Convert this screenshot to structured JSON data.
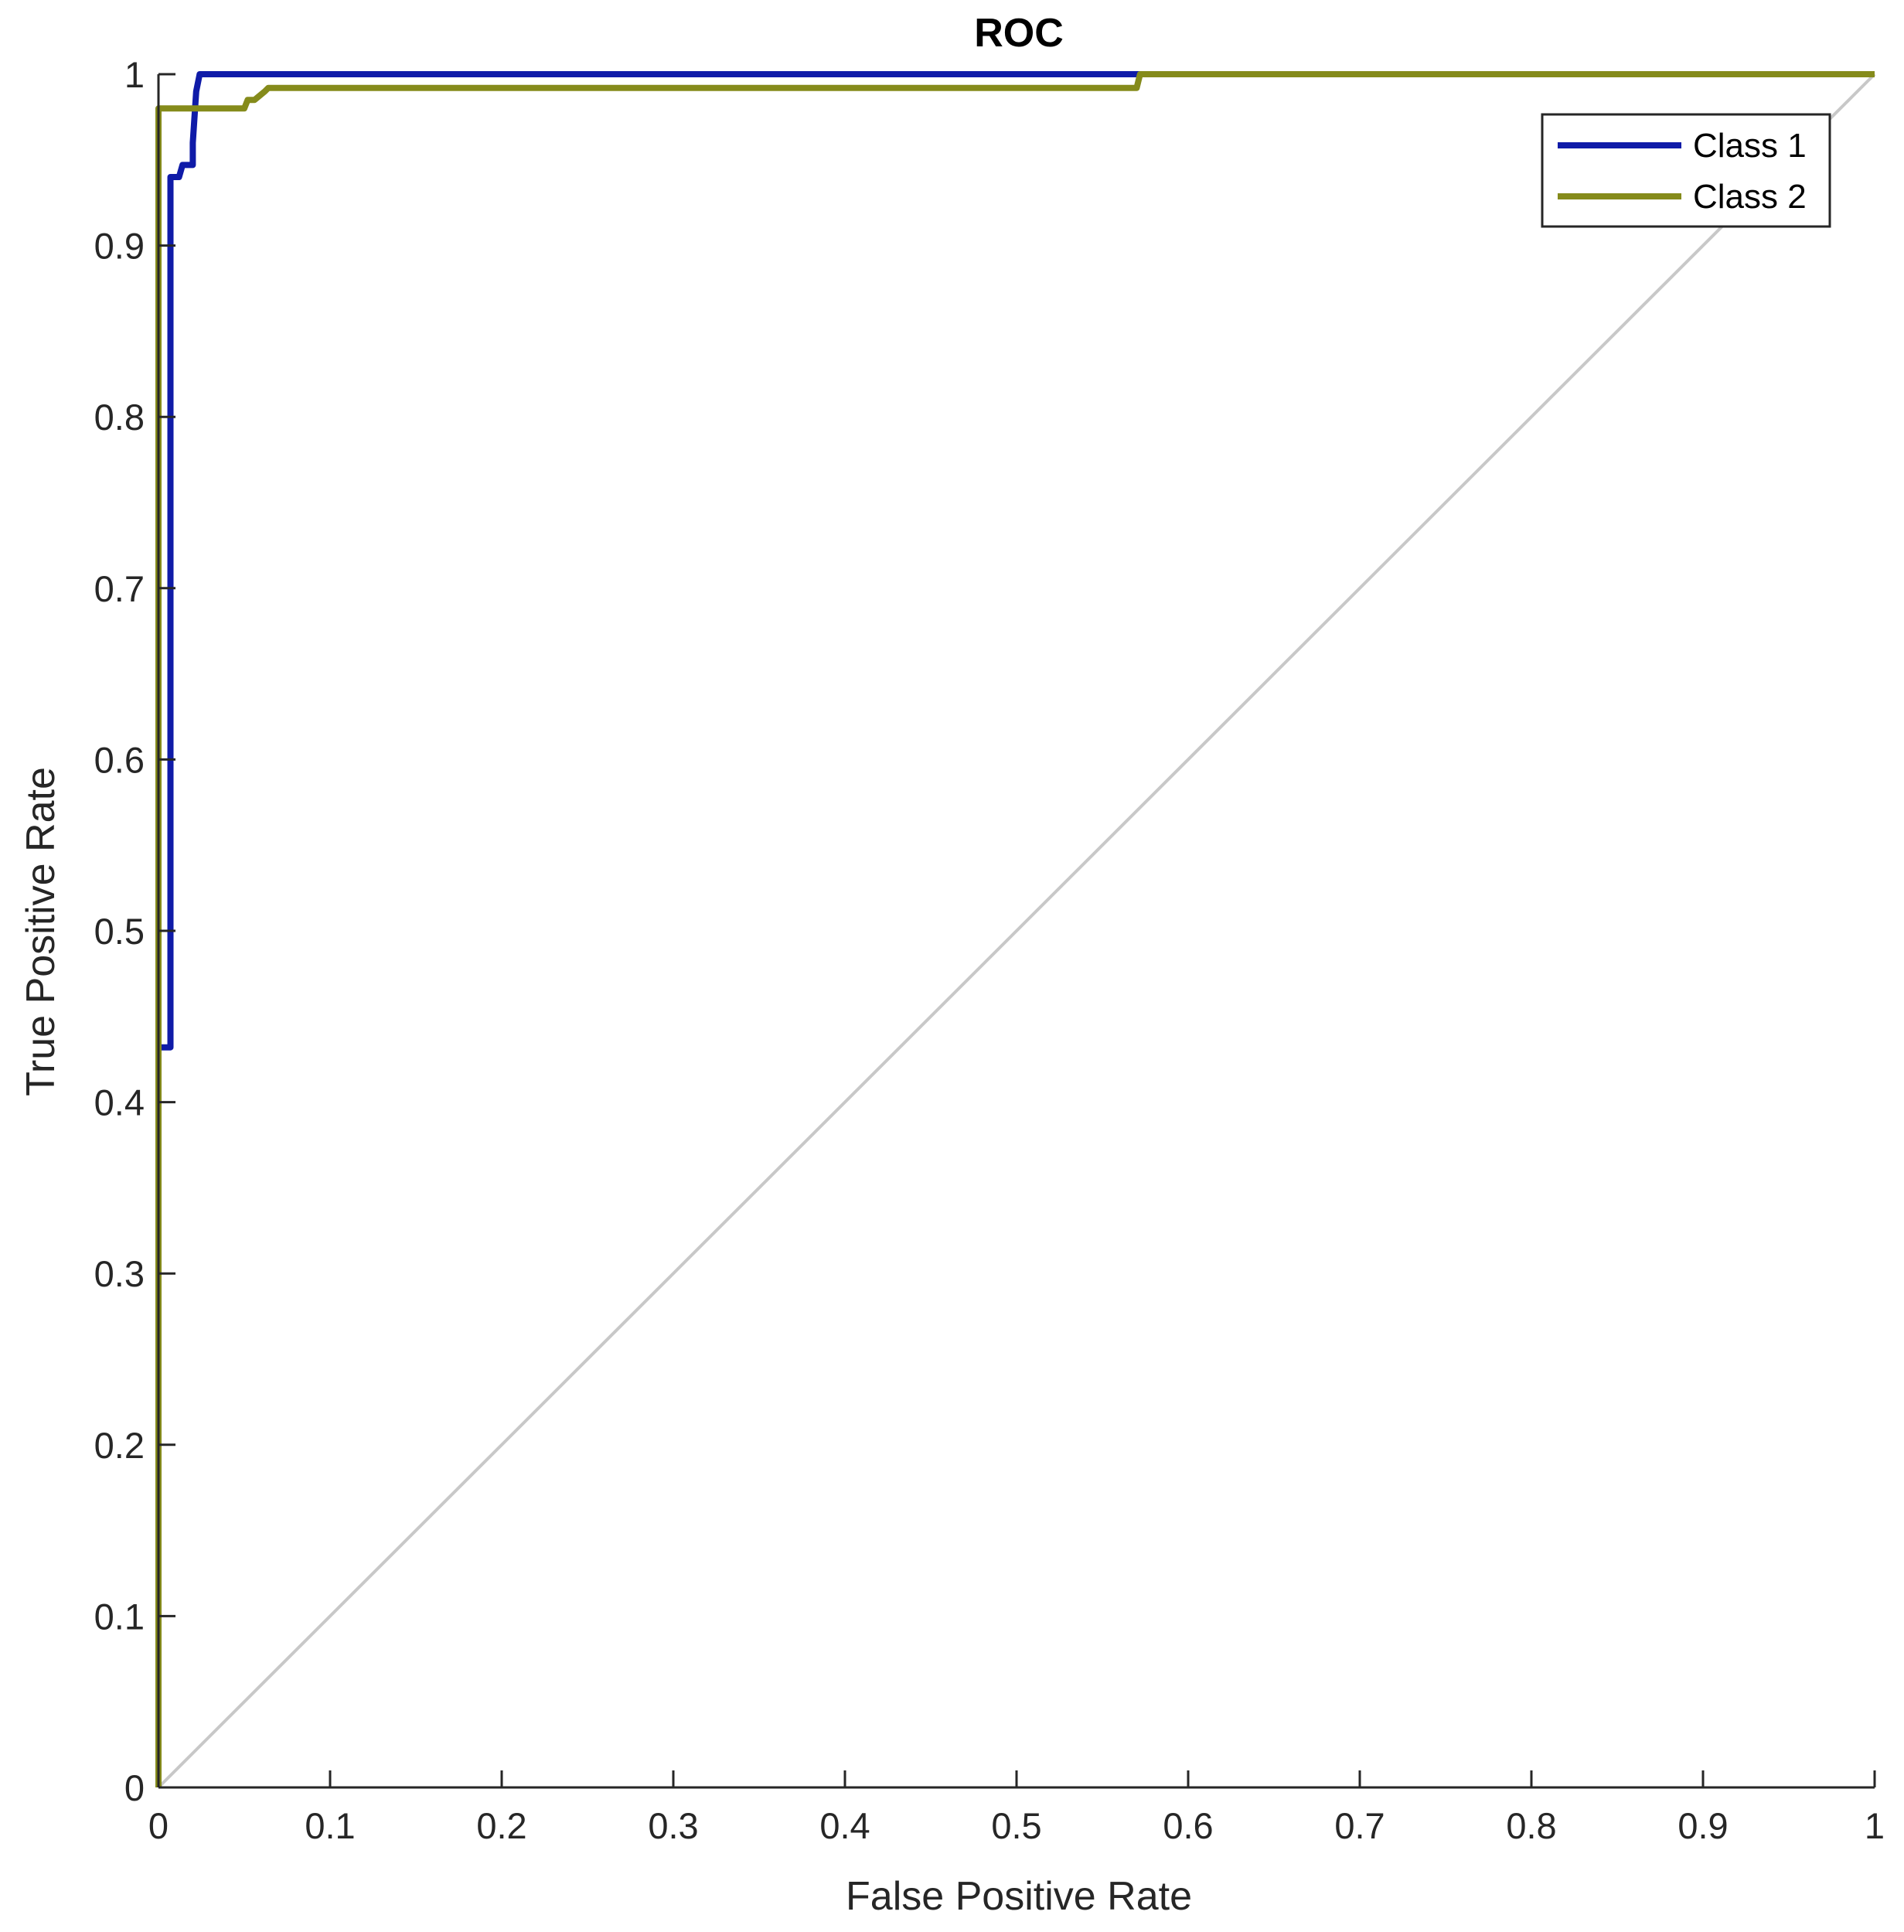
{
  "chart_data": {
    "type": "line",
    "title": "ROC",
    "xlabel": "False Positive Rate",
    "ylabel": "True Positive Rate",
    "xlim": [
      0,
      1
    ],
    "ylim": [
      0,
      1
    ],
    "x_ticks": [
      "0",
      "0.1",
      "0.2",
      "0.3",
      "0.4",
      "0.5",
      "0.6",
      "0.7",
      "0.8",
      "0.9",
      "1"
    ],
    "y_ticks": [
      "0",
      "0.1",
      "0.2",
      "0.3",
      "0.4",
      "0.5",
      "0.6",
      "0.7",
      "0.8",
      "0.9",
      "1"
    ],
    "grid": false,
    "legend_position": "top-right",
    "reference_line": {
      "x": [
        0,
        1
      ],
      "y": [
        0,
        1
      ],
      "color": "#c8c8c8"
    },
    "series": [
      {
        "name": "Class 1",
        "color": "#0f1ba8",
        "x": [
          0,
          0,
          0.007,
          0.007,
          0.012,
          0.014,
          0.02,
          0.02,
          0.022,
          0.024,
          0.568,
          0.57,
          1
        ],
        "y": [
          0,
          0.432,
          0.432,
          0.94,
          0.94,
          0.947,
          0.947,
          0.96,
          0.99,
          1,
          1,
          1,
          1
        ]
      },
      {
        "name": "Class 2",
        "color": "#858b1b",
        "x": [
          0,
          0,
          0,
          0.05,
          0.052,
          0.056,
          0.062,
          0.064,
          0.57,
          0.572,
          1
        ],
        "y": [
          0,
          0.5,
          0.98,
          0.98,
          0.985,
          0.985,
          0.99,
          0.992,
          0.992,
          1,
          1
        ]
      }
    ]
  }
}
